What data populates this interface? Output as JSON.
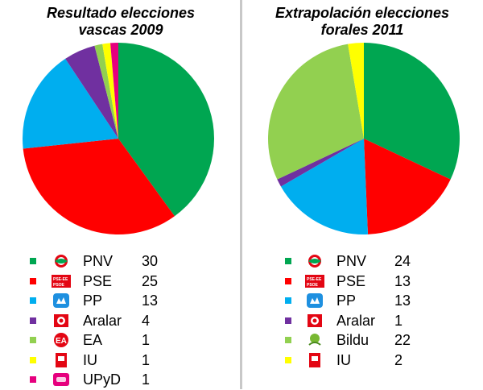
{
  "chart_data": [
    {
      "type": "pie",
      "title_lines": [
        "Resultado elecciones",
        "vascas 2009"
      ],
      "slices": [
        {
          "party": "PNV",
          "value": 30,
          "color": "#00a651",
          "logo": "pnv-logo"
        },
        {
          "party": "PSE",
          "value": 25,
          "color": "#ff0000",
          "logo": "pse-psoe-logo"
        },
        {
          "party": "PP",
          "value": 13,
          "color": "#00aeef",
          "logo": "pp-logo"
        },
        {
          "party": "Aralar",
          "value": 4,
          "color": "#7030a0",
          "logo": "aralar-logo"
        },
        {
          "party": "EA",
          "value": 1,
          "color": "#92d050",
          "logo": "ea-logo"
        },
        {
          "party": "IU",
          "value": 1,
          "color": "#ffff00",
          "logo": "iu-logo"
        },
        {
          "party": "UPyD",
          "value": 1,
          "color": "#e6007e",
          "logo": "upyd-logo"
        }
      ]
    },
    {
      "type": "pie",
      "title_lines": [
        "Extrapolación elecciones",
        "forales 2011"
      ],
      "slices": [
        {
          "party": "PNV",
          "value": 24,
          "color": "#00a651",
          "logo": "pnv-logo"
        },
        {
          "party": "PSE",
          "value": 13,
          "color": "#ff0000",
          "logo": "pse-psoe-logo"
        },
        {
          "party": "PP",
          "value": 13,
          "color": "#00aeef",
          "logo": "pp-logo"
        },
        {
          "party": "Aralar",
          "value": 1,
          "color": "#7030a0",
          "logo": "aralar-logo"
        },
        {
          "party": "Bildu",
          "value": 22,
          "color": "#92d050",
          "logo": "bildu-logo"
        },
        {
          "party": "IU",
          "value": 2,
          "color": "#ffff00",
          "logo": "iu-logo"
        }
      ]
    }
  ]
}
